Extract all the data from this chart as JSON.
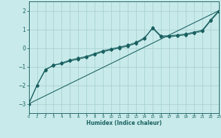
{
  "xlabel": "Humidex (Indice chaleur)",
  "ylabel": "",
  "bg_color": "#c8eaea",
  "grid_color": "#a8d0d0",
  "line_color": "#1a6060",
  "x_min": 0,
  "x_max": 23,
  "y_min": -3.5,
  "y_max": 2.5,
  "yticks": [
    -3,
    -2,
    -1,
    0,
    1,
    2
  ],
  "xticks": [
    0,
    1,
    2,
    3,
    4,
    5,
    6,
    7,
    8,
    9,
    10,
    11,
    12,
    13,
    14,
    15,
    16,
    17,
    18,
    19,
    20,
    21,
    22,
    23
  ],
  "line1_x": [
    0,
    1,
    2,
    3,
    4,
    5,
    6,
    7,
    8,
    9,
    10,
    11,
    12,
    13,
    14,
    15,
    16,
    17,
    18,
    19,
    20,
    21,
    22,
    23
  ],
  "line1_y": [
    -3.0,
    -2.0,
    -1.2,
    -0.9,
    -0.85,
    -0.7,
    -0.6,
    -0.5,
    -0.35,
    -0.2,
    -0.1,
    0.0,
    0.1,
    0.25,
    0.5,
    1.1,
    0.65,
    0.65,
    0.7,
    0.75,
    0.85,
    0.95,
    1.5,
    2.0
  ],
  "line2_x": [
    0,
    1,
    2,
    3,
    4,
    5,
    6,
    7,
    8,
    9,
    10,
    11,
    12,
    13,
    14,
    15,
    16,
    17,
    18,
    19,
    20,
    21,
    22,
    23
  ],
  "line2_y": [
    -3.0,
    -2.0,
    -1.15,
    -0.95,
    -0.8,
    -0.65,
    -0.55,
    -0.45,
    -0.3,
    -0.15,
    -0.05,
    0.05,
    0.15,
    0.3,
    0.55,
    1.05,
    0.6,
    0.6,
    0.65,
    0.7,
    0.8,
    0.9,
    1.45,
    1.95
  ],
  "line3_x": [
    0,
    23
  ],
  "line3_y": [
    -3.0,
    2.0
  ],
  "xlabel_fontsize": 5.5,
  "xlabel_fontweight": "bold",
  "xtick_fontsize": 4.0,
  "ytick_fontsize": 5.5,
  "marker_size": 2.0,
  "line_width": 0.8
}
